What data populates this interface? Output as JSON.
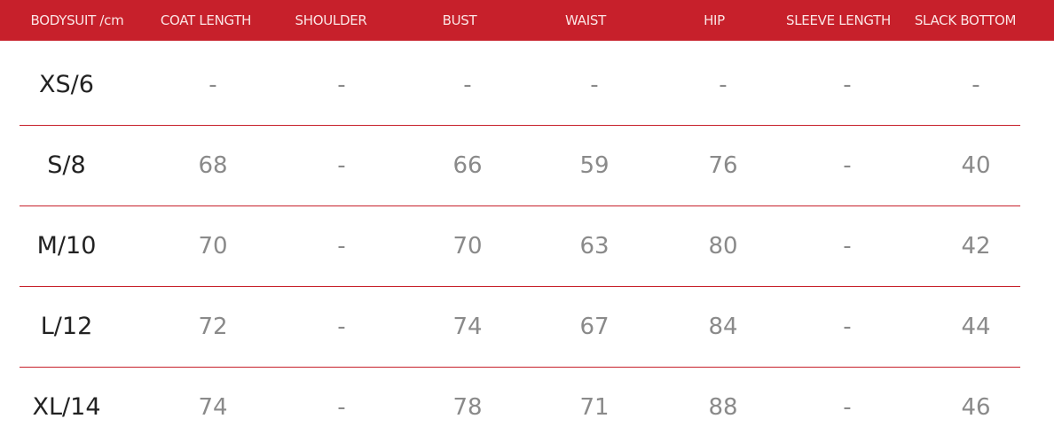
{
  "colors": {
    "header_bg": "#c7202b",
    "separator": "#c7202b"
  },
  "headers": [
    "BODYSUIT /cm",
    "COAT LENGTH",
    "SHOULDER",
    "BUST",
    "WAIST",
    "HIP",
    "SLEEVE LENGTH",
    "SLACK BOTTOM"
  ],
  "rows": [
    [
      "XS/6",
      "-",
      "-",
      "-",
      "-",
      "-",
      "-",
      "-"
    ],
    [
      "S/8",
      "68",
      "-",
      "66",
      "59",
      "76",
      "-",
      "40"
    ],
    [
      "M/10",
      "70",
      "-",
      "70",
      "63",
      "80",
      "-",
      "42"
    ],
    [
      "L/12",
      "72",
      "-",
      "74",
      "67",
      "84",
      "-",
      "44"
    ],
    [
      "XL/14",
      "74",
      "-",
      "78",
      "71",
      "88",
      "-",
      "46"
    ]
  ]
}
